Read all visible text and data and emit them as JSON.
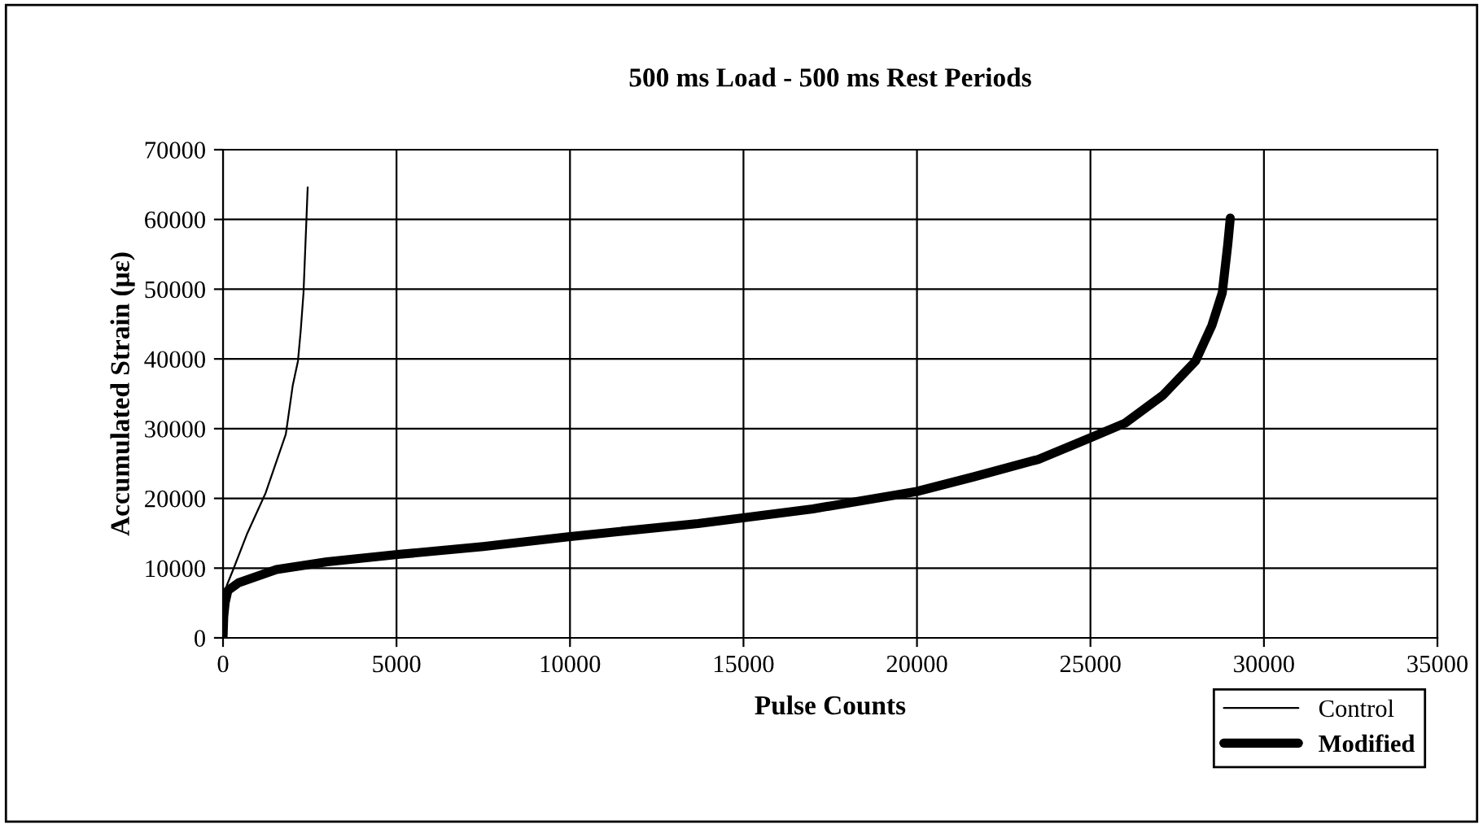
{
  "chart_data": {
    "type": "line",
    "title": "500 ms Load - 500 ms Rest Periods",
    "xlabel": "Pulse Counts",
    "ylabel": "Accumulated Strain (με)",
    "xlim": [
      0,
      35000
    ],
    "xticks": [
      0,
      5000,
      10000,
      15000,
      20000,
      25000,
      30000,
      35000
    ],
    "ylim": [
      0,
      70000
    ],
    "yticks": [
      0,
      10000,
      20000,
      30000,
      40000,
      50000,
      60000,
      70000
    ],
    "grid": true,
    "legend": "bottom right",
    "marker": "none",
    "series": [
      {
        "name": "Control",
        "color": "#000000",
        "line_style": "solid",
        "x": [
          0,
          40,
          107,
          294,
          700,
          1230,
          1810,
          2010,
          2160,
          2240,
          2320,
          2400,
          2440
        ],
        "values": [
          0,
          4000,
          7500,
          9800,
          15000,
          20800,
          29200,
          36200,
          39700,
          44100,
          49500,
          59500,
          64600
        ]
      },
      {
        "name": "Modified",
        "color": "#000000",
        "line_style": "solid",
        "x": [
          0,
          20,
          60,
          140,
          450,
          1540,
          3000,
          5030,
          7500,
          9950,
          13690,
          17000,
          20000,
          21640,
          23500,
          24910,
          26000,
          27090,
          28030,
          28500,
          28800,
          28960,
          29030
        ],
        "values": [
          0,
          3000,
          5000,
          6800,
          7900,
          9800,
          10900,
          11950,
          13100,
          14500,
          16400,
          18500,
          21000,
          23100,
          25600,
          28500,
          30800,
          34800,
          39700,
          44800,
          49500,
          56500,
          60200
        ]
      }
    ]
  }
}
